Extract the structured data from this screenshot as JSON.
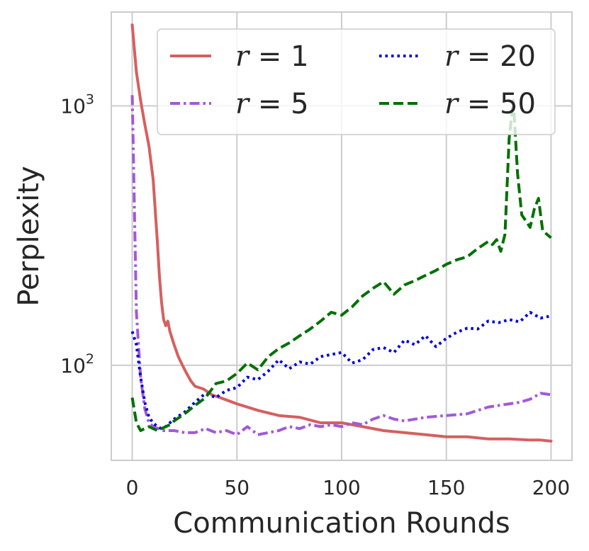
{
  "chart_data": {
    "type": "line",
    "title": "",
    "xlabel": "Communication Rounds",
    "ylabel": "Perplexity",
    "xlim": [
      -10,
      210
    ],
    "ylim": [
      43,
      2300
    ],
    "yscale": "log",
    "x_ticks": [
      {
        "value": 0,
        "label": "0"
      },
      {
        "value": 50,
        "label": "50"
      },
      {
        "value": 100,
        "label": "100"
      },
      {
        "value": 150,
        "label": "150"
      },
      {
        "value": 200,
        "label": "200"
      }
    ],
    "y_ticks": [
      {
        "value": 100,
        "base": "10",
        "exp": "2"
      },
      {
        "value": 1000,
        "base": "10",
        "exp": "3"
      }
    ],
    "grid": true,
    "legend": {
      "placement": "upper-right",
      "columns": 2,
      "entries": [
        {
          "series_index": 0,
          "symbol": "r",
          "eq": " = ",
          "num": "1"
        },
        {
          "series_index": 2,
          "symbol": "r",
          "eq": " = ",
          "num": "20"
        },
        {
          "series_index": 1,
          "symbol": "r",
          "eq": " = ",
          "num": "5"
        },
        {
          "series_index": 3,
          "symbol": "r",
          "eq": " = ",
          "num": "50"
        }
      ]
    },
    "series": [
      {
        "name": "r = 1",
        "color": "#d65f5f",
        "dash": "solid",
        "x": [
          0,
          2,
          4,
          6,
          8,
          10,
          12,
          13,
          14,
          15,
          16,
          17,
          18,
          20,
          22,
          24,
          26,
          28,
          30,
          34,
          38,
          42,
          46,
          50,
          55,
          60,
          70,
          80,
          90,
          95,
          100,
          110,
          120,
          130,
          140,
          150,
          160,
          170,
          180,
          190,
          195,
          200
        ],
        "y": [
          2050,
          1350,
          1050,
          850,
          700,
          520,
          300,
          220,
          175,
          150,
          142,
          148,
          135,
          120,
          108,
          100,
          93,
          87,
          83,
          81,
          77,
          75,
          73,
          71,
          69,
          67,
          64,
          63,
          60,
          60,
          60,
          58,
          56,
          55,
          54,
          53,
          53,
          52,
          52,
          51.5,
          51.5,
          51
        ]
      },
      {
        "name": "r = 5",
        "color": "#a259d9",
        "dash": "dashdot",
        "x": [
          0,
          2,
          4,
          6,
          8,
          10,
          15,
          20,
          25,
          30,
          35,
          40,
          45,
          50,
          55,
          60,
          65,
          70,
          75,
          80,
          85,
          90,
          95,
          100,
          105,
          110,
          115,
          120,
          125,
          130,
          140,
          150,
          160,
          170,
          175,
          180,
          185,
          190,
          195,
          200
        ],
        "y": [
          1100,
          160,
          90,
          68,
          60,
          58,
          56,
          56,
          55,
          55,
          57,
          55,
          56,
          54,
          58,
          54,
          55,
          56,
          58,
          57,
          59,
          58,
          59,
          58,
          60,
          59,
          62,
          64,
          62,
          61,
          63,
          64,
          65,
          69,
          70,
          71,
          72,
          74,
          78,
          77
        ]
      },
      {
        "name": "r = 20",
        "color": "#0000d9",
        "dash": "dotted",
        "x": [
          0,
          2,
          4,
          6,
          8,
          10,
          12,
          14,
          16,
          18,
          20,
          25,
          30,
          35,
          40,
          45,
          50,
          55,
          60,
          65,
          70,
          75,
          80,
          85,
          90,
          95,
          100,
          105,
          110,
          115,
          120,
          125,
          130,
          135,
          140,
          145,
          150,
          155,
          160,
          165,
          170,
          175,
          180,
          185,
          190,
          195,
          200
        ],
        "y": [
          135,
          120,
          90,
          72,
          63,
          60,
          58,
          57,
          58,
          60,
          62,
          66,
          72,
          78,
          75,
          80,
          82,
          90,
          88,
          95,
          105,
          97,
          103,
          101,
          108,
          110,
          112,
          102,
          105,
          115,
          117,
          112,
          125,
          120,
          130,
          118,
          127,
          134,
          139,
          138,
          148,
          146,
          150,
          147,
          160,
          152,
          155
        ]
      },
      {
        "name": "r = 50",
        "color": "#007000",
        "dash": "dashed",
        "x": [
          0,
          2,
          4,
          6,
          8,
          10,
          12,
          14,
          16,
          18,
          20,
          25,
          30,
          35,
          40,
          45,
          50,
          55,
          60,
          65,
          70,
          75,
          80,
          85,
          90,
          95,
          100,
          105,
          110,
          115,
          120,
          125,
          130,
          135,
          140,
          145,
          150,
          155,
          160,
          165,
          170,
          172,
          174,
          176,
          178,
          180,
          182,
          184,
          186,
          188,
          190,
          192,
          194,
          196,
          198,
          200
        ],
        "y": [
          75,
          60,
          56,
          57,
          58,
          57,
          56,
          57,
          58,
          59,
          61,
          65,
          70,
          75,
          85,
          87,
          93,
          102,
          96,
          108,
          116,
          122,
          130,
          138,
          148,
          160,
          156,
          168,
          185,
          198,
          210,
          188,
          204,
          212,
          222,
          232,
          245,
          255,
          262,
          282,
          300,
          292,
          305,
          275,
          320,
          750,
          1050,
          550,
          380,
          360,
          340,
          400,
          440,
          330,
          320,
          310
        ]
      }
    ]
  }
}
